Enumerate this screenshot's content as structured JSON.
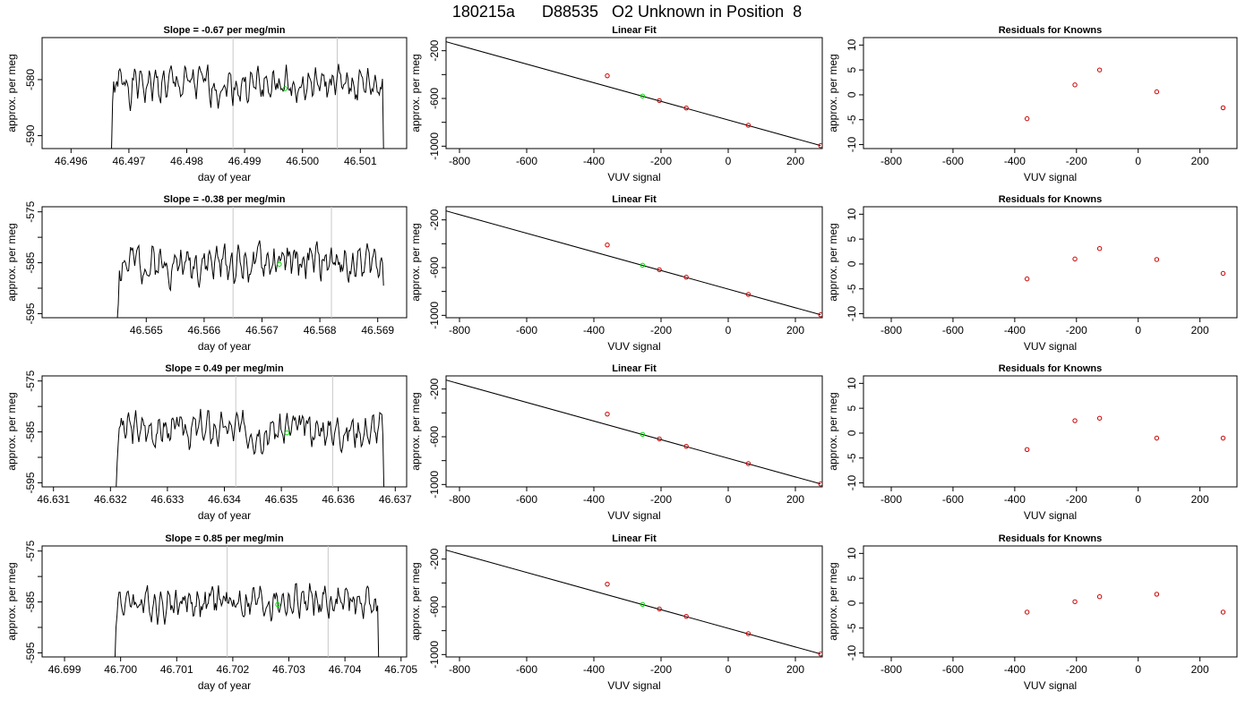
{
  "title": "180215a      D88535   O2 Unknown in Position  8",
  "chart_data": [
    {
      "type": "line",
      "title": "Slope =  -0.67  per meg/min",
      "xlabel": "day of year",
      "ylabel": "approx. per meg",
      "xlim": [
        46.4955,
        46.5018
      ],
      "ylim": [
        -592.3,
        -572.5
      ],
      "xticks": [
        "46.496",
        "46.497",
        "46.498",
        "46.499",
        "46.500",
        "46.501"
      ],
      "xtick_values": [
        46.496,
        46.497,
        46.498,
        46.499,
        46.5,
        46.501
      ],
      "yticks": [
        "-590",
        "-580"
      ],
      "ytick_values": [
        -590,
        -580
      ],
      "grid": false,
      "vlines": [
        46.4988,
        46.5006
      ],
      "x_start": 46.4967,
      "x_end": 46.5014,
      "y_start": -592.5,
      "y_mean": -581.0,
      "y_amp": 1.7,
      "y_rise": -584.0,
      "y_end": -592.5,
      "seed": 1,
      "marker": {
        "x": 46.4997,
        "y": -581.6,
        "color": "#00dd00"
      }
    },
    {
      "type": "scatter",
      "title": "Linear Fit",
      "xlabel": "VUV signal",
      "ylabel": "approx. per meg",
      "xlim": [
        -840,
        280
      ],
      "ylim": [
        -1020,
        -90
      ],
      "xticks": [
        "-800",
        "-600",
        "-400",
        "-200",
        "0",
        "200"
      ],
      "xtick_values": [
        -800,
        -600,
        -400,
        -200,
        0,
        200
      ],
      "yticks": [
        "-200",
        "-600",
        "-1000"
      ],
      "ytick_values": [
        -200,
        -600,
        -1000
      ],
      "minor_yticks": [
        -400,
        -800
      ],
      "grid": false,
      "fit_line": {
        "x": [
          -840,
          275
        ],
        "y": [
          -125,
          -995
        ]
      },
      "points": {
        "x": [
          -360,
          -205,
          -125,
          60,
          275
        ],
        "y": [
          -410,
          -618,
          -680,
          -825,
          -995
        ],
        "color": "#cc0000"
      },
      "marker": {
        "x": -255,
        "y": -580,
        "color": "#00dd00"
      }
    },
    {
      "type": "scatter",
      "title": "Residuals for Knowns",
      "xlabel": "VUV signal",
      "ylabel": "approx. per meg",
      "xlim": [
        -890,
        320
      ],
      "ylim": [
        -10.8,
        11.5
      ],
      "xticks": [
        "-800",
        "-600",
        "-400",
        "-200",
        "0",
        "200"
      ],
      "xtick_values": [
        -800,
        -600,
        -400,
        -200,
        0,
        200
      ],
      "yticks": [
        "-10",
        "-5",
        "0",
        "5",
        "10"
      ],
      "ytick_values": [
        -10,
        -5,
        0,
        5,
        10
      ],
      "grid": false,
      "points": {
        "x": [
          -360,
          -205,
          -125,
          60,
          275
        ],
        "y": [
          -4.8,
          2.0,
          5.0,
          0.6,
          -2.6
        ],
        "color": "#cc0000"
      }
    },
    {
      "type": "line",
      "title": "Slope =  -0.38  per meg/min",
      "xlabel": "day of year",
      "ylabel": "approx. per meg",
      "xlim": [
        46.5632,
        46.5695
      ],
      "ylim": [
        -595.8,
        -574.0
      ],
      "xticks": [
        "46.565",
        "46.566",
        "46.567",
        "46.568",
        "46.569"
      ],
      "xtick_values": [
        46.565,
        46.566,
        46.567,
        46.568,
        46.569
      ],
      "yticks": [
        "-575",
        "-585",
        "-595"
      ],
      "ytick_values": [
        -575,
        -585,
        -595
      ],
      "minor_yticks": [
        -580,
        -590
      ],
      "grid": false,
      "vlines": [
        46.5665,
        46.5682
      ],
      "x_start": 46.5645,
      "x_end": 46.5691,
      "y_start": -596.0,
      "y_mean": -585.0,
      "y_amp": 1.9,
      "y_rise": -593.0,
      "y_end": -589.5,
      "seed": 2,
      "marker": {
        "x": 46.5673,
        "y": -585.3,
        "color": "#00dd00"
      }
    },
    {
      "type": "scatter",
      "title": "Linear Fit",
      "xlabel": "VUV signal",
      "ylabel": "approx. per meg",
      "xlim": [
        -840,
        280
      ],
      "ylim": [
        -1020,
        -90
      ],
      "xticks": [
        "-800",
        "-600",
        "-400",
        "-200",
        "0",
        "200"
      ],
      "xtick_values": [
        -800,
        -600,
        -400,
        -200,
        0,
        200
      ],
      "yticks": [
        "-200",
        "-600",
        "-1000"
      ],
      "ytick_values": [
        -200,
        -600,
        -1000
      ],
      "minor_yticks": [
        -400,
        -800
      ],
      "grid": false,
      "fit_line": {
        "x": [
          -840,
          275
        ],
        "y": [
          -125,
          -995
        ]
      },
      "points": {
        "x": [
          -360,
          -205,
          -125,
          60,
          275
        ],
        "y": [
          -410,
          -618,
          -680,
          -825,
          -995
        ],
        "color": "#cc0000"
      },
      "marker": {
        "x": -255,
        "y": -580,
        "color": "#00dd00"
      }
    },
    {
      "type": "scatter",
      "title": "Residuals for Knowns",
      "xlabel": "VUV signal",
      "ylabel": "approx. per meg",
      "xlim": [
        -890,
        320
      ],
      "ylim": [
        -10.8,
        11.5
      ],
      "xticks": [
        "-800",
        "-600",
        "-400",
        "-200",
        "0",
        "200"
      ],
      "xtick_values": [
        -800,
        -600,
        -400,
        -200,
        0,
        200
      ],
      "yticks": [
        "-10",
        "-5",
        "0",
        "5",
        "10"
      ],
      "ytick_values": [
        -10,
        -5,
        0,
        5,
        10
      ],
      "grid": false,
      "points": {
        "x": [
          -360,
          -205,
          -125,
          60,
          275
        ],
        "y": [
          -3.0,
          1.0,
          3.1,
          0.9,
          -1.9
        ],
        "color": "#cc0000"
      }
    },
    {
      "type": "line",
      "title": "Slope =  0.49  per meg/min",
      "xlabel": "day of year",
      "ylabel": "approx. per meg",
      "xlim": [
        46.6308,
        46.6372
      ],
      "ylim": [
        -595.8,
        -574.0
      ],
      "xticks": [
        "46.631",
        "46.632",
        "46.633",
        "46.634",
        "46.635",
        "46.636",
        "46.637"
      ],
      "xtick_values": [
        46.631,
        46.632,
        46.633,
        46.634,
        46.635,
        46.636,
        46.637
      ],
      "yticks": [
        "-575",
        "-585",
        "-595"
      ],
      "ytick_values": [
        -575,
        -585,
        -595
      ],
      "minor_yticks": [
        -580,
        -590
      ],
      "grid": false,
      "vlines": [
        46.6342,
        46.6359
      ],
      "x_start": 46.6321,
      "x_end": 46.6368,
      "y_start": -596.0,
      "y_mean": -584.5,
      "y_amp": 1.8,
      "y_rise": -591.0,
      "y_end": -596.0,
      "seed": 3,
      "marker": {
        "x": 46.6351,
        "y": -585.2,
        "color": "#00dd00"
      }
    },
    {
      "type": "scatter",
      "title": "Linear Fit",
      "xlabel": "VUV signal",
      "ylabel": "approx. per meg",
      "xlim": [
        -840,
        280
      ],
      "ylim": [
        -1020,
        -90
      ],
      "xticks": [
        "-800",
        "-600",
        "-400",
        "-200",
        "0",
        "200"
      ],
      "xtick_values": [
        -800,
        -600,
        -400,
        -200,
        0,
        200
      ],
      "yticks": [
        "-200",
        "-600",
        "-1000"
      ],
      "ytick_values": [
        -200,
        -600,
        -1000
      ],
      "minor_yticks": [
        -400,
        -800
      ],
      "grid": false,
      "fit_line": {
        "x": [
          -840,
          275
        ],
        "y": [
          -125,
          -995
        ]
      },
      "points": {
        "x": [
          -360,
          -205,
          -125,
          60,
          275
        ],
        "y": [
          -410,
          -618,
          -680,
          -825,
          -995
        ],
        "color": "#cc0000"
      },
      "marker": {
        "x": -255,
        "y": -580,
        "color": "#00dd00"
      }
    },
    {
      "type": "scatter",
      "title": "Residuals for Knowns",
      "xlabel": "VUV signal",
      "ylabel": "approx. per meg",
      "xlim": [
        -890,
        320
      ],
      "ylim": [
        -10.8,
        11.5
      ],
      "xticks": [
        "-800",
        "-600",
        "-400",
        "-200",
        "0",
        "200"
      ],
      "xtick_values": [
        -800,
        -600,
        -400,
        -200,
        0,
        200
      ],
      "yticks": [
        "-10",
        "-5",
        "0",
        "5",
        "10"
      ],
      "ytick_values": [
        -10,
        -5,
        0,
        5,
        10
      ],
      "grid": false,
      "points": {
        "x": [
          -360,
          -205,
          -125,
          60,
          275
        ],
        "y": [
          -3.3,
          2.5,
          3.0,
          -1.0,
          -1.0
        ],
        "color": "#cc0000"
      }
    },
    {
      "type": "line",
      "title": "Slope =  0.85  per meg/min",
      "xlabel": "day of year",
      "ylabel": "approx. per meg",
      "xlim": [
        46.6986,
        46.7051
      ],
      "ylim": [
        -595.8,
        -574.0
      ],
      "xticks": [
        "46.699",
        "46.700",
        "46.701",
        "46.702",
        "46.703",
        "46.704",
        "46.705"
      ],
      "xtick_values": [
        46.699,
        46.7,
        46.701,
        46.702,
        46.703,
        46.704,
        46.705
      ],
      "yticks": [
        "-575",
        "-585",
        "-595"
      ],
      "ytick_values": [
        -575,
        -585,
        -595
      ],
      "minor_yticks": [
        -580,
        -590
      ],
      "grid": false,
      "vlines": [
        46.7019,
        46.7037
      ],
      "x_start": 46.6999,
      "x_end": 46.7046,
      "y_start": -596.0,
      "y_mean": -585.0,
      "y_amp": 1.8,
      "y_rise": -590.0,
      "y_end": -596.0,
      "seed": 4,
      "marker": {
        "x": 46.7028,
        "y": -585.5,
        "color": "#00dd00"
      }
    },
    {
      "type": "scatter",
      "title": "Linear Fit",
      "xlabel": "VUV signal",
      "ylabel": "approx. per meg",
      "xlim": [
        -840,
        280
      ],
      "ylim": [
        -1020,
        -90
      ],
      "xticks": [
        "-800",
        "-600",
        "-400",
        "-200",
        "0",
        "200"
      ],
      "xtick_values": [
        -800,
        -600,
        -400,
        -200,
        0,
        200
      ],
      "yticks": [
        "-200",
        "-600",
        "-1000"
      ],
      "ytick_values": [
        -200,
        -600,
        -1000
      ],
      "minor_yticks": [
        -400,
        -800
      ],
      "grid": false,
      "fit_line": {
        "x": [
          -840,
          275
        ],
        "y": [
          -125,
          -995
        ]
      },
      "points": {
        "x": [
          -360,
          -205,
          -125,
          60,
          275
        ],
        "y": [
          -410,
          -618,
          -680,
          -825,
          -995
        ],
        "color": "#cc0000"
      },
      "marker": {
        "x": -255,
        "y": -580,
        "color": "#00dd00"
      }
    },
    {
      "type": "scatter",
      "title": "Residuals for Knowns",
      "xlabel": "VUV signal",
      "ylabel": "approx. per meg",
      "xlim": [
        -890,
        320
      ],
      "ylim": [
        -10.8,
        11.5
      ],
      "xticks": [
        "-800",
        "-600",
        "-400",
        "-200",
        "0",
        "200"
      ],
      "xtick_values": [
        -800,
        -600,
        -400,
        -200,
        0,
        200
      ],
      "yticks": [
        "-10",
        "-5",
        "0",
        "5",
        "10"
      ],
      "ytick_values": [
        -10,
        -5,
        0,
        5,
        10
      ],
      "grid": false,
      "points": {
        "x": [
          -360,
          -205,
          -125,
          60,
          275
        ],
        "y": [
          -1.8,
          0.3,
          1.3,
          1.8,
          -1.8
        ],
        "color": "#cc0000"
      }
    }
  ]
}
